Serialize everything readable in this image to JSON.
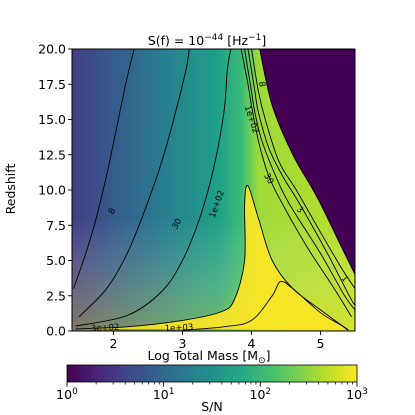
{
  "chart_data": {
    "type": "heatmap",
    "title_parts": {
      "prefix": "S(f) = 10",
      "exponent": "−44",
      "suffix": " [Hz",
      "suffix_exponent": "−1",
      "suffix_end": "]"
    },
    "xlabel_parts": {
      "prefix": "Log Total Mass [M",
      "sub": "⊙",
      "suffix": "]"
    },
    "ylabel": "Redshift",
    "xlim": [
      1.4,
      5.5
    ],
    "ylim": [
      0,
      20
    ],
    "x_ticks": [
      "2",
      "3",
      "4",
      "5"
    ],
    "x_tick_values": [
      2,
      3,
      4,
      5
    ],
    "y_ticks": [
      "0.0",
      "2.5",
      "5.0",
      "7.5",
      "10.0",
      "12.5",
      "15.0",
      "17.5",
      "20.0"
    ],
    "y_tick_values": [
      0,
      2.5,
      5,
      7.5,
      10,
      12.5,
      15,
      17.5,
      20
    ],
    "colorbar": {
      "label": "S/N",
      "scale": "log",
      "range": [
        1,
        1000
      ],
      "colormap": "viridis",
      "ticks": [
        {
          "base": "10",
          "exp": "0",
          "value": 1
        },
        {
          "base": "10",
          "exp": "1",
          "value": 10
        },
        {
          "base": "10",
          "exp": "2",
          "value": 100
        },
        {
          "base": "10",
          "exp": "3",
          "value": 1000
        }
      ]
    },
    "contours": [
      {
        "level": "8",
        "points": [
          [
            1.42,
            3.0
          ],
          [
            1.6,
            5.5
          ],
          [
            1.75,
            8.0
          ],
          [
            1.9,
            11.0
          ],
          [
            2.05,
            14.5
          ],
          [
            2.2,
            18.0
          ],
          [
            2.3,
            20.0
          ]
        ]
      },
      {
        "level": "30",
        "points": [
          [
            1.5,
            1.0
          ],
          [
            1.9,
            3.0
          ],
          [
            2.2,
            5.5
          ],
          [
            2.45,
            8.5
          ],
          [
            2.7,
            12.0
          ],
          [
            2.9,
            15.5
          ],
          [
            3.05,
            18.5
          ],
          [
            3.1,
            20.0
          ]
        ]
      },
      {
        "level": "1e+02",
        "points": [
          [
            1.45,
            0.35
          ],
          [
            2.2,
            1.1
          ],
          [
            2.7,
            2.8
          ],
          [
            3.0,
            5.0
          ],
          [
            3.25,
            8.0
          ],
          [
            3.45,
            11.5
          ],
          [
            3.6,
            15.5
          ],
          [
            3.65,
            18.5
          ],
          [
            3.7,
            20.0
          ]
        ]
      },
      {
        "level": "3e+02",
        "points": [
          [
            1.45,
            0.15
          ],
          [
            2.2,
            0.3
          ],
          [
            3.0,
            0.75
          ],
          [
            3.55,
            1.35
          ],
          [
            3.75,
            2.2
          ],
          [
            3.9,
            5.0
          ],
          [
            3.9,
            9.0
          ],
          [
            3.95,
            10.3
          ],
          [
            4.1,
            8.0
          ],
          [
            4.3,
            5.0
          ],
          [
            4.6,
            3.0
          ],
          [
            5.0,
            1.5
          ],
          [
            5.25,
            0.6
          ],
          [
            5.4,
            0.1
          ]
        ]
      },
      {
        "level": "1e+03",
        "points": [
          [
            3.0,
            0.05
          ],
          [
            3.6,
            0.3
          ],
          [
            4.0,
            0.75
          ],
          [
            4.3,
            2.5
          ],
          [
            4.42,
            3.5
          ],
          [
            4.6,
            3.0
          ],
          [
            5.0,
            1.3
          ],
          [
            5.3,
            0.4
          ],
          [
            5.4,
            0.05
          ]
        ]
      },
      {
        "level": "1e+02",
        "points": [
          [
            3.85,
            20.0
          ],
          [
            3.95,
            17.5
          ],
          [
            4.0,
            16.0
          ],
          [
            4.1,
            13.5
          ],
          [
            4.25,
            11.0
          ],
          [
            4.45,
            9.0
          ],
          [
            4.8,
            6.0
          ],
          [
            5.2,
            3.0
          ],
          [
            5.45,
            1.0
          ]
        ]
      },
      {
        "level": "30",
        "points": [
          [
            3.9,
            20.0
          ],
          [
            4.0,
            17.0
          ],
          [
            4.05,
            15.5
          ],
          [
            4.15,
            13.5
          ],
          [
            4.35,
            11.0
          ],
          [
            4.55,
            9.0
          ],
          [
            5.0,
            5.5
          ],
          [
            5.35,
            2.5
          ],
          [
            5.5,
            1.5
          ]
        ]
      },
      {
        "level": "8",
        "points": [
          [
            3.95,
            20.0
          ],
          [
            4.05,
            17.0
          ],
          [
            4.1,
            15.5
          ],
          [
            4.25,
            13.0
          ],
          [
            4.45,
            11.0
          ],
          [
            4.7,
            9.0
          ],
          [
            5.1,
            5.5
          ],
          [
            5.45,
            2.2
          ],
          [
            5.5,
            2.0
          ]
        ]
      },
      {
        "level": "3",
        "points": [
          [
            4.0,
            20.0
          ],
          [
            4.1,
            17.0
          ],
          [
            4.2,
            15.0
          ],
          [
            4.4,
            12.0
          ],
          [
            4.65,
            10.0
          ],
          [
            5.0,
            7.0
          ],
          [
            5.3,
            4.5
          ],
          [
            5.5,
            3.0
          ]
        ]
      },
      {
        "level": "1",
        "points": [
          [
            4.12,
            20.0
          ],
          [
            4.3,
            16.0
          ],
          [
            4.6,
            12.5
          ],
          [
            4.95,
            9.5
          ],
          [
            5.3,
            6.0
          ],
          [
            5.5,
            4.0
          ]
        ]
      }
    ],
    "contour_labels": [
      {
        "text": "8",
        "x": 1.98,
        "y": 8.5,
        "rotate": -60
      },
      {
        "text": "30",
        "x": 2.92,
        "y": 7.6,
        "rotate": -63
      },
      {
        "text": "1e+02",
        "x": 3.5,
        "y": 9.0,
        "rotate": -70
      },
      {
        "text": "3e+02",
        "x": 1.88,
        "y": 0.22,
        "rotate": -3
      },
      {
        "text": "1e+03",
        "x": 2.95,
        "y": 0.22,
        "rotate": -3
      },
      {
        "text": "8",
        "x": 4.15,
        "y": 17.5,
        "rotate": 80
      },
      {
        "text": "1e+02",
        "x": 4.0,
        "y": 15.0,
        "rotate": 72
      },
      {
        "text": "30",
        "x": 4.25,
        "y": 10.8,
        "rotate": 60
      },
      {
        "text": "3",
        "x": 4.7,
        "y": 8.6,
        "rotate": 45
      },
      {
        "text": "1",
        "x": 5.35,
        "y": 3.7,
        "rotate": 50
      }
    ]
  }
}
